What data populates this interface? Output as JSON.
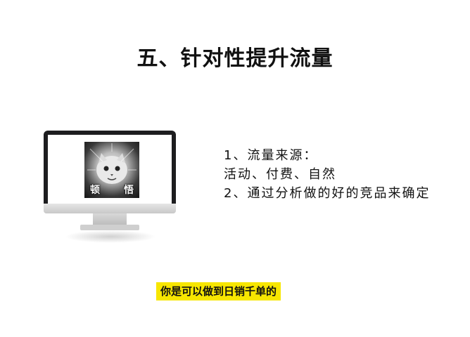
{
  "slide": {
    "title": "五、针对性提升流量"
  },
  "meme": {
    "caption_left": "顿",
    "caption_right": "悟"
  },
  "content": {
    "lines": [
      "1、流量来源：",
      "活动、付费、自然",
      "2、通过分析做的好的竞品来确定"
    ]
  },
  "subtitle": {
    "text": "你是可以做到日销千单的"
  },
  "colors": {
    "subtitle_bg": "#f7e600",
    "text": "#111111",
    "monitor_bezel": "#1d1d1f"
  }
}
